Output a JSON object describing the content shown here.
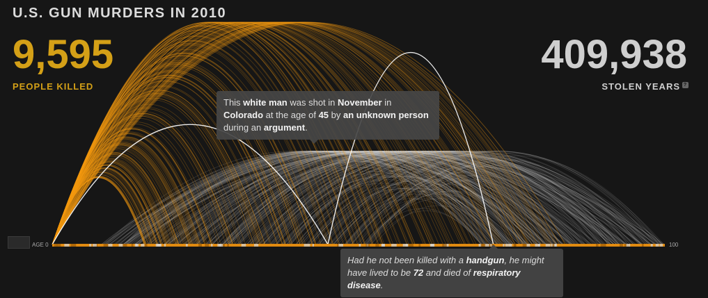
{
  "title": "U.S. GUN MURDERS IN 2010",
  "killed": {
    "value": "9,595",
    "label": "PEOPLE KILLED"
  },
  "stolen": {
    "value": "409,938",
    "label": "STOLEN YEARS",
    "help": "?"
  },
  "tooltip_top": {
    "t1": "This ",
    "b1": "white man",
    "t2": " was shot in ",
    "b2": "November",
    "t3": " in ",
    "b3": "Colorado",
    "t4": " at the age of ",
    "b4": "45",
    "t5": " by ",
    "b5": "an unknown person",
    "t6": " during an ",
    "b6": "argument",
    "t7": "."
  },
  "tooltip_bottom": {
    "t1": "Had he not been killed with a ",
    "b1": "handgun",
    "t2": ", he might have lived to be ",
    "b2": "72",
    "t3": " and died of ",
    "b3": "respiratory disease",
    "t4": "."
  },
  "chart_data": {
    "type": "area",
    "xlim": [
      0,
      100
    ],
    "xtick_labels": [
      "AGE 0",
      "100"
    ],
    "highlight": {
      "age_at_death": 45,
      "projected_age": 72
    },
    "colors": {
      "killed": "#f39c12",
      "stolen": "#cfcfcf",
      "highlight": "#ffffff",
      "background": "#161616"
    }
  }
}
